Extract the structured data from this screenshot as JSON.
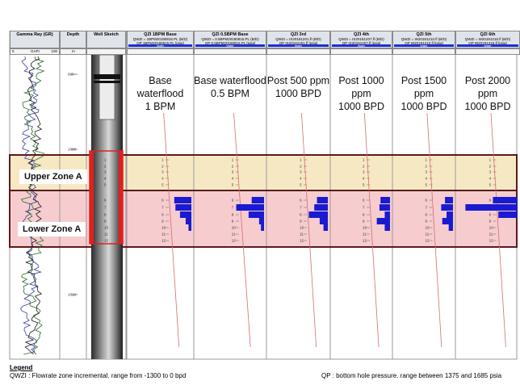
{
  "tracks": {
    "gamma_title": "Gamma Ray (GR)",
    "gamma_unit": "GAPI",
    "gamma_min": "0",
    "gamma_max": "100",
    "depth_title": "Depth",
    "depth_unit": "m",
    "well_title": "Well Sketch",
    "depth_ticks": [
      "990",
      "1000",
      "1010"
    ]
  },
  "panels": [
    {
      "title": "QZI 1BPM Base",
      "qwzi": "QWZI = 1BPM20180815.PL (B/D)",
      "qp": "QP  1BPM20180815.PL  [psia]",
      "line1": "Base waterflood",
      "line2": "1 BPM"
    },
    {
      "title": "QZI 0.5BPM Base",
      "qwzi": "QWZI = 0.5BPM20180815.PL (B/D)",
      "qp": "QP  0.5BPM20180815.PL  [psia]",
      "line1": "Base waterflood",
      "line2": "0.5 BPM"
    },
    {
      "title": "QZI 3rd",
      "qwzi": "QWZI = IS20181201.fl (B/D)",
      "qp": "QP  IS20181201.fl  [psia]",
      "line1": "Post 500 ppm",
      "line2": "1000 BPD"
    },
    {
      "title": "QZI 4th",
      "qwzi": "QWZI = IS20181207.fl (B/D)",
      "qp": "QP  IS20181207.fl  [psia]",
      "line1": "Post 1000 ppm",
      "line2": "1000 BPD"
    },
    {
      "title": "QZI 5th",
      "qwzi": "QWZI = W20181210.fl (B/D)",
      "qp": "QP  W20181210.fl  [psia]",
      "line1": "Post 1500 ppm",
      "line2": "1000 BPD"
    },
    {
      "title": "QZI 6th",
      "qwzi": "QWZI = W20181216.fl (B/D)",
      "qp": "QP  W20181216.fl  [psia]",
      "line1": "Post 2000 ppm",
      "line2": "1000 BPD"
    }
  ],
  "water_label": "Water",
  "zones": {
    "upper": "Upper Zone A",
    "lower": "Lower Zone A"
  },
  "zone_numbers": [
    "1",
    "2",
    "3",
    "4",
    "5",
    "6",
    "7",
    "8",
    "9",
    "10",
    "11",
    "12"
  ],
  "legend": {
    "title": "Legend",
    "qwzi": "QWZI : Flowrate zone incremental. range from -1300 to 0 bpd",
    "qp": "QP : bottom hole pressure. range between 1375 and 1685 psia"
  },
  "colors": {
    "upper_zone": "#f7e8c4",
    "lower_zone": "#f6cccf",
    "zone_border": "#5a1a1a",
    "flow_bar": "#1a1ad0",
    "pressure_line": "#d07070",
    "highlight": "#e02020"
  },
  "chart_data": {
    "type": "bar",
    "categories": [
      "7",
      "8",
      "9",
      "10",
      "11"
    ],
    "series": [
      {
        "name": "Base waterflood 1 BPM",
        "values": [
          0.3,
          0.28,
          0.2,
          0.1,
          0.05
        ]
      },
      {
        "name": "Base waterflood 0.5 BPM",
        "values": [
          0.2,
          0.45,
          0.25,
          0.08,
          0.05
        ]
      },
      {
        "name": "Post 500 ppm 1000 BPD",
        "values": [
          0.2,
          0.25,
          0.35,
          0.15,
          0.08
        ]
      },
      {
        "name": "Post 1000 ppm 1000 BPD",
        "values": [
          0.18,
          0.2,
          0.1,
          0.25,
          0.1
        ]
      },
      {
        "name": "Post 1500 ppm 1000 BPD",
        "values": [
          0.15,
          0.22,
          0.12,
          0.2,
          0.08
        ]
      },
      {
        "name": "Post 2000 ppm 1000 BPD",
        "values": [
          0.45,
          0.95,
          0.35,
          0.0,
          0.0
        ]
      }
    ]
  }
}
